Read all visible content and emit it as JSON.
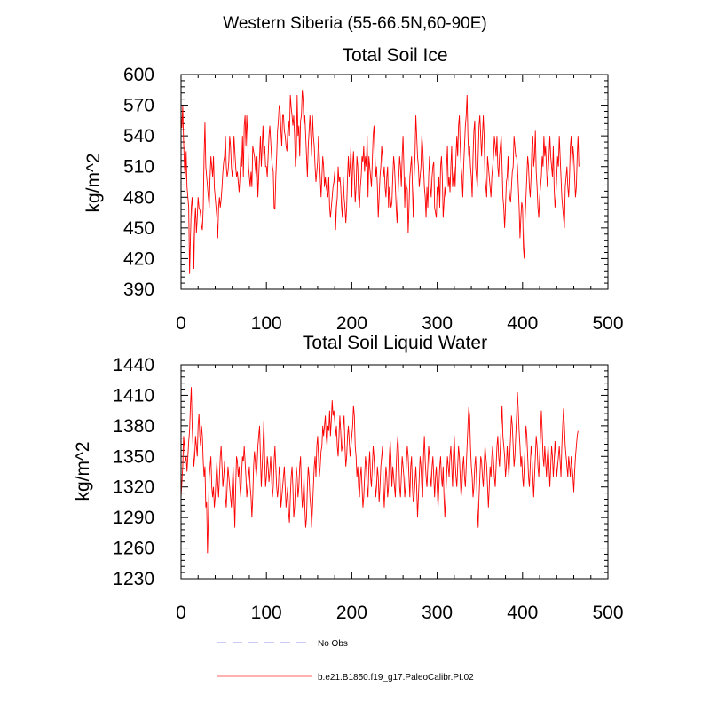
{
  "figure_title": "Western Siberia (55-66.5N,60-90E)",
  "legend": [
    {
      "label": "No Obs",
      "color": "#aaaaee",
      "style": "dashed"
    },
    {
      "label": "b.e21.B1850.f19_g17.PaleoCalibr.PI.02",
      "color": "#ff8080",
      "style": "solid"
    }
  ],
  "chart_data": [
    {
      "type": "line",
      "title": "Total Soil Ice",
      "xlabel": "",
      "ylabel": "kg/m^2",
      "xlim": [
        0,
        500
      ],
      "ylim": [
        390,
        600
      ],
      "xticks": [
        0,
        100,
        200,
        300,
        400,
        500
      ],
      "yticks": [
        390,
        420,
        450,
        480,
        510,
        540,
        570,
        600
      ],
      "grid": false,
      "series": [
        {
          "name": "b.e21.B1850.f19_g17.PaleoCalibr.PI.02",
          "color": "#ff0000",
          "x_start": 0,
          "x_step": 1,
          "values": [
            560,
            548,
            569,
            535,
            510,
            498,
            525,
            490,
            480,
            470,
            405,
            440,
            470,
            480,
            460,
            410,
            455,
            470,
            445,
            460,
            480,
            470,
            468,
            462,
            452,
            448,
            470,
            520,
            553,
            510,
            500,
            490,
            480,
            470,
            500,
            520,
            510,
            500,
            520,
            490,
            480,
            470,
            460,
            440,
            470,
            480,
            470,
            478,
            490,
            505,
            515,
            520,
            540,
            510,
            500,
            505,
            515,
            540,
            530,
            510,
            500,
            510,
            540,
            525,
            510,
            500,
            505,
            495,
            485,
            500,
            520,
            510,
            540,
            500,
            550,
            560,
            530,
            560,
            540,
            510,
            500,
            490,
            505,
            490,
            530,
            525,
            520,
            510,
            500,
            520,
            480,
            500,
            520,
            540,
            510,
            530,
            550,
            520,
            530,
            510,
            510,
            500,
            520,
            540,
            550,
            535,
            520,
            510,
            505,
            470,
            468,
            500,
            520,
            545,
            555,
            570,
            565,
            545,
            530,
            560,
            560,
            545,
            540,
            530,
            525,
            545,
            555,
            540,
            580,
            568,
            560,
            550,
            560,
            540,
            510,
            520,
            580,
            540,
            550,
            520,
            555,
            560,
            585,
            575,
            550,
            560,
            540,
            520,
            500,
            530,
            545,
            560,
            540,
            520,
            560,
            540,
            530,
            510,
            495,
            505,
            515,
            540,
            520,
            500,
            480,
            500,
            520,
            510,
            490,
            500,
            490,
            485,
            480,
            500,
            470,
            460,
            470,
            480,
            490,
            495,
            505,
            448,
            470,
            480,
            510,
            495,
            500,
            490,
            470,
            460,
            500,
            480,
            470,
            455,
            470,
            500,
            520,
            500,
            510,
            530,
            480,
            510,
            525,
            500,
            475,
            490,
            520,
            510,
            480,
            470,
            490,
            500,
            520,
            515,
            530,
            505,
            520,
            510,
            540,
            480,
            520,
            510,
            500,
            490,
            515,
            540,
            550,
            525,
            500,
            510,
            490,
            460,
            480,
            500,
            510,
            530,
            520,
            500,
            510,
            490,
            480,
            500,
            510,
            470,
            490,
            480,
            470,
            475,
            500,
            520,
            510,
            490,
            470,
            455,
            480,
            500,
            520,
            510,
            490,
            520,
            540,
            510,
            470,
            500,
            490,
            488,
            445,
            470,
            500,
            510,
            520,
            490,
            460,
            500,
            520,
            560,
            540,
            520,
            510,
            490,
            500,
            510,
            540,
            530,
            510,
            490,
            480,
            460,
            490,
            470,
            500,
            520,
            490,
            480,
            500,
            510,
            515,
            470,
            465,
            460,
            490,
            480,
            500,
            470,
            510,
            520,
            500,
            460,
            475,
            490,
            480,
            510,
            530,
            490,
            500,
            485,
            510,
            530,
            490,
            500,
            510,
            490,
            520,
            540,
            520,
            550,
            560,
            530,
            510,
            500,
            480,
            510,
            530,
            550,
            560,
            580,
            540,
            520,
            530,
            510,
            500,
            480,
            520,
            545,
            555,
            510,
            500,
            490,
            520,
            550,
            560,
            540,
            520,
            540,
            560,
            540,
            500,
            490,
            480,
            520,
            510,
            500,
            490,
            480,
            500,
            510,
            520,
            540,
            530,
            520,
            540,
            510,
            500,
            520,
            530,
            540,
            510,
            480,
            470,
            450,
            470,
            495,
            500,
            520,
            490,
            480,
            475,
            490,
            505,
            510,
            540,
            530,
            520,
            520,
            510,
            490,
            470,
            440,
            460,
            475,
            470,
            430,
            420,
            460,
            480,
            500,
            520,
            510,
            490,
            480,
            500,
            530,
            540,
            510,
            520,
            545,
            505,
            490,
            470,
            460,
            480,
            490,
            500,
            520,
            510,
            540,
            520,
            530,
            510,
            490,
            505,
            520,
            540,
            520,
            510,
            500,
            530,
            490,
            470,
            480,
            500,
            520,
            510,
            540,
            520,
            500,
            480,
            470,
            460,
            450,
            490,
            500,
            510,
            490,
            480,
            500,
            530,
            540,
            510,
            530,
            520,
            500,
            480,
            490,
            520,
            540,
            510
          ]
        }
      ]
    },
    {
      "type": "line",
      "title": "Total Soil Liquid Water",
      "xlabel": "",
      "ylabel": "kg/m^2",
      "xlim": [
        0,
        500
      ],
      "ylim": [
        1230,
        1440
      ],
      "xticks": [
        0,
        100,
        200,
        300,
        400,
        500
      ],
      "yticks": [
        1230,
        1260,
        1290,
        1320,
        1350,
        1380,
        1410,
        1440
      ],
      "grid": false,
      "series": [
        {
          "name": "b.e21.B1850.f19_g17.PaleoCalibr.PI.02",
          "color": "#ff0000",
          "x_start": 0,
          "x_step": 1,
          "values": [
            1310,
            1325,
            1340,
            1370,
            1360,
            1345,
            1350,
            1335,
            1350,
            1365,
            1375,
            1400,
            1418,
            1380,
            1360,
            1340,
            1350,
            1370,
            1360,
            1350,
            1380,
            1392,
            1370,
            1360,
            1380,
            1370,
            1345,
            1330,
            1340,
            1300,
            1305,
            1255,
            1290,
            1330,
            1340,
            1350,
            1320,
            1310,
            1320,
            1300,
            1310,
            1330,
            1345,
            1325,
            1310,
            1330,
            1350,
            1360,
            1340,
            1320,
            1330,
            1345,
            1310,
            1300,
            1320,
            1340,
            1330,
            1320,
            1310,
            1300,
            1320,
            1340,
            1310,
            1280,
            1320,
            1350,
            1345,
            1330,
            1340,
            1320,
            1310,
            1335,
            1350,
            1345,
            1360,
            1345,
            1330,
            1310,
            1320,
            1330,
            1340,
            1320,
            1310,
            1290,
            1310,
            1340,
            1355,
            1345,
            1330,
            1340,
            1360,
            1370,
            1380,
            1350,
            1320,
            1340,
            1360,
            1385,
            1345,
            1320,
            1330,
            1350,
            1340,
            1325,
            1335,
            1350,
            1330,
            1310,
            1320,
            1345,
            1360,
            1340,
            1320,
            1310,
            1320,
            1340,
            1330,
            1300,
            1310,
            1320,
            1330,
            1340,
            1320,
            1300,
            1310,
            1320,
            1295,
            1285,
            1310,
            1330,
            1340,
            1320,
            1290,
            1300,
            1320,
            1340,
            1330,
            1310,
            1320,
            1340,
            1350,
            1320,
            1300,
            1310,
            1330,
            1300,
            1280,
            1290,
            1320,
            1340,
            1330,
            1310,
            1300,
            1280,
            1300,
            1320,
            1340,
            1350,
            1330,
            1360,
            1370,
            1350,
            1330,
            1340,
            1355,
            1360,
            1380,
            1370,
            1380,
            1390,
            1370,
            1360,
            1380,
            1375,
            1395,
            1370,
            1385,
            1405,
            1390,
            1395,
            1385,
            1370,
            1380,
            1360,
            1350,
            1370,
            1390,
            1375,
            1355,
            1360,
            1380,
            1390,
            1360,
            1340,
            1350,
            1370,
            1380,
            1365,
            1350,
            1360,
            1370,
            1380,
            1400,
            1390,
            1360,
            1350,
            1330,
            1340,
            1320,
            1310,
            1330,
            1340,
            1320,
            1300,
            1310,
            1330,
            1350,
            1340,
            1320,
            1310,
            1340,
            1355,
            1330,
            1320,
            1340,
            1360,
            1350,
            1330,
            1310,
            1320,
            1340,
            1330,
            1305,
            1320,
            1340,
            1350,
            1360,
            1320,
            1300,
            1320,
            1340,
            1330,
            1310,
            1320,
            1350,
            1365,
            1345,
            1320,
            1340,
            1330,
            1320,
            1310,
            1340,
            1360,
            1370,
            1350,
            1320,
            1310,
            1330,
            1350,
            1340,
            1330,
            1310,
            1320,
            1345,
            1360,
            1350,
            1330,
            1310,
            1340,
            1350,
            1320,
            1305,
            1310,
            1325,
            1340,
            1320,
            1290,
            1310,
            1330,
            1350,
            1340,
            1320,
            1310,
            1350,
            1370,
            1345,
            1330,
            1320,
            1340,
            1360,
            1350,
            1330,
            1320,
            1340,
            1350,
            1330,
            1310,
            1330,
            1340,
            1320,
            1300,
            1320,
            1340,
            1350,
            1330,
            1320,
            1340,
            1310,
            1290,
            1310,
            1330,
            1350,
            1340,
            1330,
            1350,
            1360,
            1340,
            1320,
            1350,
            1370,
            1345,
            1330,
            1320,
            1340,
            1360,
            1350,
            1330,
            1310,
            1320,
            1340,
            1350,
            1330,
            1320,
            1340,
            1360,
            1380,
            1398,
            1390,
            1360,
            1340,
            1330,
            1310,
            1320,
            1340,
            1350,
            1330,
            1300,
            1280,
            1310,
            1330,
            1350,
            1345,
            1330,
            1320,
            1340,
            1360,
            1350,
            1340,
            1320,
            1300,
            1320,
            1340,
            1330,
            1350,
            1360,
            1345,
            1330,
            1320,
            1340,
            1360,
            1370,
            1350,
            1340,
            1360,
            1380,
            1400,
            1370,
            1360,
            1350,
            1330,
            1340,
            1360,
            1345,
            1330,
            1350,
            1370,
            1390,
            1380,
            1360,
            1340,
            1350,
            1370,
            1390,
            1413,
            1395,
            1375,
            1360,
            1340,
            1350,
            1330,
            1320,
            1340,
            1360,
            1380,
            1370,
            1350,
            1330,
            1320,
            1340,
            1360,
            1350,
            1330,
            1310,
            1330,
            1350,
            1370,
            1360,
            1340,
            1330,
            1350,
            1370,
            1395,
            1375,
            1350,
            1340,
            1360,
            1345,
            1330,
            1350,
            1360,
            1340,
            1320,
            1340,
            1360,
            1350,
            1330,
            1345,
            1365,
            1350,
            1330,
            1340,
            1350,
            1360,
            1345,
            1330,
            1360,
            1380,
            1397,
            1380,
            1360,
            1350,
            1340,
            1330,
            1350,
            1340,
            1330,
            1350,
            1340,
            1330,
            1315,
            1335,
            1350,
            1360,
            1370,
            1375
          ]
        }
      ]
    }
  ]
}
